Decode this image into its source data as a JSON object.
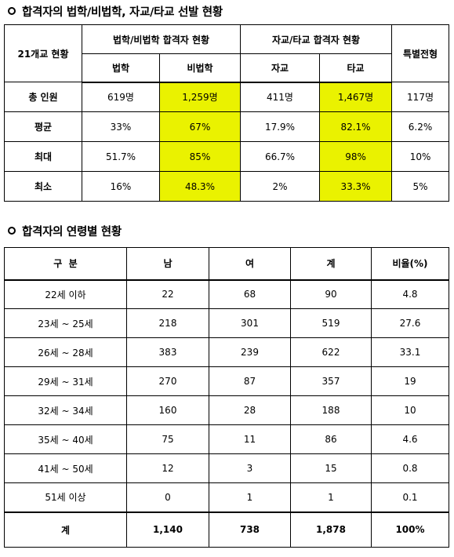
{
  "section1": {
    "title": "합격자의 법학/비법학, 자교/타교 선발 현황",
    "corner": "21개교 현황",
    "group_law": "법학/비법학 합격자 현황",
    "group_school": "자교/타교 합격자 현황",
    "special": "특별전형",
    "sub": [
      "법학",
      "비법학",
      "자교",
      "타교"
    ],
    "rows": [
      {
        "label": "총 인원",
        "law": "619명",
        "nonlaw": "1,259명",
        "own": "411명",
        "other": "1,467명",
        "special": "117명"
      },
      {
        "label": "평균",
        "law": "33%",
        "nonlaw": "67%",
        "own": "17.9%",
        "other": "82.1%",
        "special": "6.2%"
      },
      {
        "label": "최대",
        "law": "51.7%",
        "nonlaw": "85%",
        "own": "66.7%",
        "other": "98%",
        "special": "10%"
      },
      {
        "label": "최소",
        "law": "16%",
        "nonlaw": "48.3%",
        "own": "2%",
        "other": "33.3%",
        "special": "5%"
      }
    ],
    "highlight_color": "#eaf200"
  },
  "section2": {
    "title": "합격자의 연령별 현황",
    "headers": [
      "구  분",
      "남",
      "여",
      "계",
      "비율(%)"
    ],
    "rows": [
      [
        "22세 이하",
        "22",
        "68",
        "90",
        "4.8"
      ],
      [
        "23세 ~ 25세",
        "218",
        "301",
        "519",
        "27.6"
      ],
      [
        "26세 ~ 28세",
        "383",
        "239",
        "622",
        "33.1"
      ],
      [
        "29세 ~ 31세",
        "270",
        "87",
        "357",
        "19"
      ],
      [
        "32세 ~ 34세",
        "160",
        "28",
        "188",
        "10"
      ],
      [
        "35세 ~ 40세",
        "75",
        "11",
        "86",
        "4.6"
      ],
      [
        "41세 ~ 50세",
        "12",
        "3",
        "15",
        "0.8"
      ],
      [
        "51세 이상",
        "0",
        "1",
        "1",
        "0.1"
      ]
    ],
    "total": [
      "계",
      "1,140",
      "738",
      "1,878",
      "100%"
    ]
  }
}
